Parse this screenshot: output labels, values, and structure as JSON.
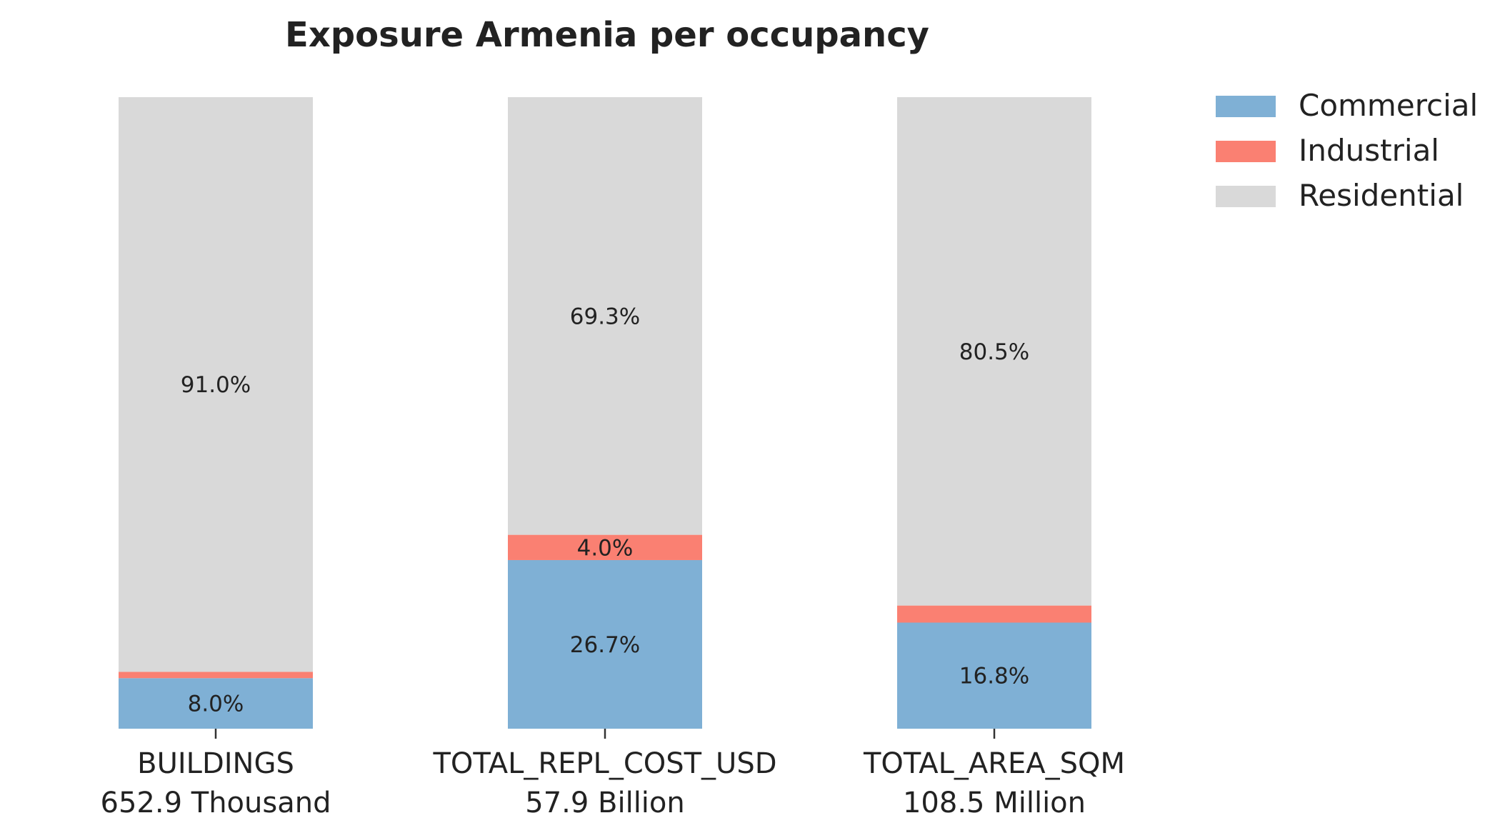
{
  "chart_data": {
    "type": "bar",
    "stacked": true,
    "normalized": true,
    "title": "Exposure Armenia per occupancy",
    "categories": [
      "BUILDINGS",
      "TOTAL_REPL_COST_USD",
      "TOTAL_AREA_SQM"
    ],
    "category_totals": [
      "652.9 Thousand",
      "57.9 Billion",
      "108.5 Million"
    ],
    "series": [
      {
        "name": "Commercial",
        "color": "#7fb0d5",
        "values": [
          8.0,
          26.7,
          16.8
        ]
      },
      {
        "name": "Industrial",
        "color": "#fa8072",
        "values": [
          1.0,
          4.0,
          2.7
        ]
      },
      {
        "name": "Residential",
        "color": "#d9d9d9",
        "values": [
          91.0,
          69.3,
          80.5
        ]
      }
    ],
    "value_labels": [
      [
        "8.0%",
        "",
        "91.0%"
      ],
      [
        "26.7%",
        "4.0%",
        "69.3%"
      ],
      [
        "16.8%",
        "",
        "80.5%"
      ]
    ],
    "ylim": [
      0,
      100
    ],
    "grid": false,
    "legend_position": "top-right"
  }
}
